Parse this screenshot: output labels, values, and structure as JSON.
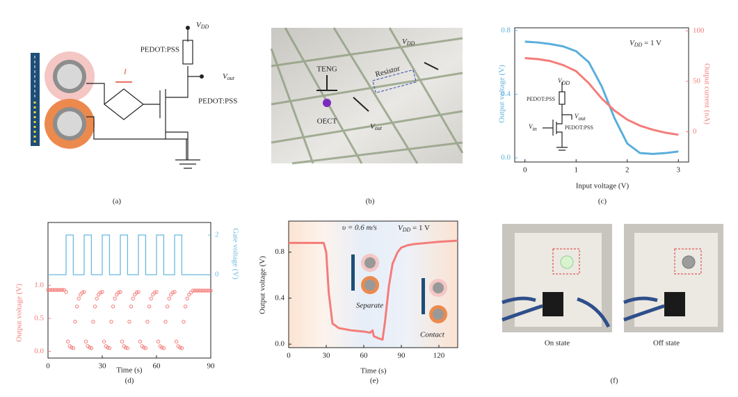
{
  "panel_a": {
    "caption": "(a)",
    "vdd": {
      "symbol": "V",
      "subscript": "DD"
    },
    "pedot_top": "PEDOT:PSS",
    "vout": {
      "symbol": "V",
      "subscript": "out"
    },
    "pedot_bottom": "PEDOT:PSS",
    "current": "I"
  },
  "panel_b": {
    "caption": "(b)",
    "teng": "TENG",
    "oect": "OECT",
    "resistor": "Resistor",
    "vdd": {
      "symbol": "V",
      "subscript": "DD"
    },
    "vout": {
      "symbol": "V",
      "subscript": "out"
    }
  },
  "chart_data": [
    {
      "type": "line",
      "caption": "(c)",
      "x_label": "Input voltage (V)",
      "y_label": "Output voltage (V)",
      "y2_label": "Output current (nA)",
      "annotation": {
        "symbol": "V",
        "subscript": "DD",
        "text": " = 1 V"
      },
      "inset": {
        "vdd": {
          "symbol": "V",
          "subscript": "DD"
        },
        "vout": {
          "symbol": "V",
          "subscript": "out"
        },
        "vin": {
          "symbol": "V",
          "subscript": "in"
        },
        "pedot_top": "PEDOT:PSS",
        "pedot_bottom": "PEDOT:PSS"
      },
      "xlim": [
        -0.2,
        3.2
      ],
      "xticks": [
        0,
        1,
        2,
        3
      ],
      "ylim": [
        -0.026,
        0.817
      ],
      "yticks": [
        {
          "value": 0,
          "label": "0.0"
        },
        0.4,
        0.8
      ],
      "y2lim": [
        -30,
        103
      ],
      "y2ticks": [
        0,
        50,
        100
      ],
      "y_axis_color": "#5aaedc",
      "y2_axis_color": "#f47c78",
      "x": [
        0,
        0.25,
        0.5,
        0.75,
        1,
        1.25,
        1.5,
        1.75,
        2,
        2.25,
        2.5,
        2.75,
        3
      ],
      "series": [
        {
          "color": "#5aaedc",
          "values": [
            0.73,
            0.725,
            0.715,
            0.7,
            0.67,
            0.6,
            0.45,
            0.25,
            0.09,
            0.03,
            0.025,
            0.03,
            0.04
          ]
        },
        {
          "color": "#f47c78",
          "axis": "y2",
          "values": [
            73,
            72,
            70,
            66,
            60,
            48,
            33,
            21,
            12,
            6,
            2,
            -1,
            -3
          ]
        }
      ]
    },
    {
      "type": "line",
      "caption": "(d)",
      "x_label": "Time (s)",
      "y_label": "Output voltage (V)",
      "y2_label": "Gate voltage (V)",
      "xlim": [
        0,
        90
      ],
      "xticks": [
        0,
        30,
        60,
        90
      ],
      "ylim": [
        -0.1,
        1.95
      ],
      "yticks": [
        {
          "value": 0,
          "label": "0.0"
        },
        0.5,
        {
          "value": 1,
          "label": "1.0"
        }
      ],
      "y2lim": [
        -4.2,
        2.63
      ],
      "y2ticks": [
        0,
        2
      ],
      "y_axis_color": "#f47c78",
      "y2_axis_color": "#6ab8e0",
      "series": [
        {
          "color": "#6ab8e0",
          "axis": "y2",
          "x": [
            0,
            10,
            10,
            14,
            14,
            20,
            20,
            24,
            24,
            30,
            30,
            34,
            34,
            40,
            40,
            44,
            44,
            50,
            50,
            54,
            54,
            60,
            60,
            64,
            64,
            70,
            70,
            74,
            74,
            90
          ],
          "values": [
            0,
            0,
            2,
            2,
            0,
            0,
            2,
            2,
            0,
            0,
            2,
            2,
            0,
            0,
            2,
            2,
            0,
            0,
            2,
            2,
            0,
            0,
            2,
            2,
            0,
            0,
            2,
            2,
            0,
            0
          ]
        },
        {
          "color": "#f47c78",
          "marker": "open-circle",
          "x": [
            0,
            1,
            2,
            3,
            4,
            5,
            6,
            7,
            8,
            9,
            10,
            11,
            12,
            13,
            14,
            15,
            16,
            17,
            18,
            19,
            20,
            21,
            22,
            23,
            24,
            25,
            26,
            27,
            28,
            29,
            30,
            31,
            32,
            33,
            34,
            35,
            36,
            37,
            38,
            39,
            40,
            41,
            42,
            43,
            44,
            45,
            46,
            47,
            48,
            49,
            50,
            51,
            52,
            53,
            54,
            55,
            56,
            57,
            58,
            59,
            60,
            61,
            62,
            63,
            64,
            65,
            66,
            67,
            68,
            69,
            70,
            71,
            72,
            73,
            74,
            75,
            76,
            77,
            78,
            79,
            80,
            81,
            82,
            83,
            84,
            85,
            86,
            87,
            88,
            89,
            90
          ],
          "values": [
            0.93,
            0.93,
            0.93,
            0.93,
            0.93,
            0.93,
            0.93,
            0.93,
            0.93,
            0.93,
            0.9,
            0.15,
            0.08,
            0.06,
            0.05,
            0.45,
            0.68,
            0.8,
            0.86,
            0.89,
            0.9,
            0.15,
            0.08,
            0.06,
            0.05,
            0.45,
            0.68,
            0.8,
            0.86,
            0.89,
            0.9,
            0.15,
            0.08,
            0.06,
            0.05,
            0.45,
            0.68,
            0.8,
            0.86,
            0.89,
            0.9,
            0.15,
            0.08,
            0.06,
            0.05,
            0.45,
            0.68,
            0.8,
            0.86,
            0.89,
            0.9,
            0.15,
            0.08,
            0.06,
            0.05,
            0.45,
            0.68,
            0.8,
            0.86,
            0.89,
            0.9,
            0.15,
            0.08,
            0.06,
            0.05,
            0.45,
            0.68,
            0.8,
            0.86,
            0.89,
            0.9,
            0.15,
            0.08,
            0.06,
            0.05,
            0.45,
            0.68,
            0.8,
            0.86,
            0.89,
            0.92,
            0.92,
            0.92,
            0.92,
            0.92,
            0.92,
            0.92,
            0.92,
            0.92,
            0.92,
            0.92
          ]
        }
      ]
    },
    {
      "type": "line",
      "caption": "(e)",
      "x_label": "Time (s)",
      "y_label": "Output voltage (V)",
      "speed": "υ = 0.6 m/s",
      "annotation": {
        "symbol": "V",
        "subscript": "DD",
        "text": " = 1 V"
      },
      "separate": "Separate",
      "contact": "Contact",
      "xlim": [
        0,
        135
      ],
      "xticks": [
        0,
        30,
        60,
        90,
        120
      ],
      "ylim": [
        -0.03,
        1.07
      ],
      "yticks": [
        {
          "value": 0,
          "label": "0.0"
        },
        0.4,
        0.8
      ],
      "series": [
        {
          "color": "#f47c78",
          "x": [
            0,
            10,
            20,
            28,
            30,
            32,
            35,
            40,
            50,
            60,
            65,
            67,
            68,
            70,
            72,
            75,
            77,
            80,
            83,
            87,
            90,
            95,
            100,
            110,
            120,
            135
          ],
          "values": [
            0.88,
            0.88,
            0.88,
            0.88,
            0.8,
            0.45,
            0.18,
            0.14,
            0.12,
            0.11,
            0.1,
            0.12,
            0.07,
            0.06,
            0.05,
            0.04,
            0.2,
            0.5,
            0.7,
            0.8,
            0.84,
            0.86,
            0.87,
            0.88,
            0.89,
            0.9
          ]
        }
      ]
    }
  ],
  "panel_f": {
    "caption": "(f)",
    "on": "On state",
    "off": "Off state"
  }
}
